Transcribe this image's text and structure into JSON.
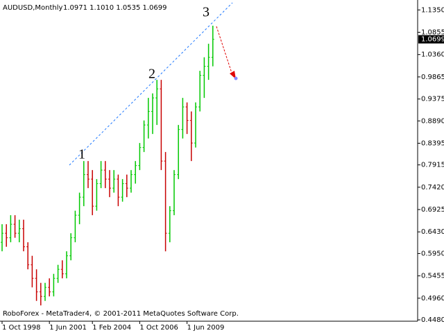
{
  "chart_data": {
    "type": "ohlc",
    "title": "AUDUSD,Monthly",
    "subtitle": "1.0971 1.1010 1.0535 1.0699",
    "footer": "RoboForex - MetaTrader4, © 2001-2011 MetaQuotes Software Corp.",
    "annotations": [
      "1",
      "2",
      "3"
    ],
    "last_price": 1.0699,
    "up_color": "#00c800",
    "down_color": "#c80000",
    "categories": [
      "1 Oct 1998",
      null,
      null,
      null,
      null,
      null,
      null,
      null,
      null,
      null,
      null,
      "1 Jun 2001",
      null,
      null,
      null,
      null,
      null,
      null,
      null,
      null,
      null,
      "1 Feb 2004",
      null,
      null,
      null,
      null,
      null,
      null,
      null,
      null,
      null,
      null,
      "1 Oct 2006",
      null,
      null,
      null,
      null,
      null,
      null,
      null,
      null,
      null,
      null,
      "1 Jun 2009",
      null,
      null,
      null,
      null,
      null,
      null
    ],
    "open": [
      0.62,
      0.64,
      0.63,
      0.66,
      0.64,
      0.65,
      0.61,
      0.57,
      0.54,
      0.51,
      0.5,
      0.52,
      0.51,
      0.54,
      0.56,
      0.55,
      0.59,
      0.63,
      0.68,
      0.72,
      0.77,
      0.76,
      0.7,
      0.75,
      0.78,
      0.76,
      0.74,
      0.76,
      0.72,
      0.75,
      0.74,
      0.77,
      0.79,
      0.83,
      0.88,
      0.91,
      0.94,
      0.96,
      0.8,
      0.64,
      0.69,
      0.77,
      0.87,
      0.92,
      0.89,
      0.84,
      0.92,
      0.99,
      1.01,
      1.03
    ],
    "high": [
      0.66,
      0.66,
      0.68,
      0.68,
      0.67,
      0.67,
      0.62,
      0.59,
      0.56,
      0.53,
      0.53,
      0.54,
      0.55,
      0.57,
      0.58,
      0.6,
      0.64,
      0.69,
      0.73,
      0.8,
      0.8,
      0.78,
      0.76,
      0.8,
      0.8,
      0.78,
      0.78,
      0.77,
      0.76,
      0.77,
      0.78,
      0.8,
      0.84,
      0.89,
      0.94,
      0.95,
      0.98,
      0.98,
      0.82,
      0.7,
      0.78,
      0.88,
      0.94,
      0.93,
      0.91,
      0.93,
      1.0,
      1.03,
      1.06,
      1.1
    ],
    "low": [
      0.6,
      0.61,
      0.62,
      0.63,
      0.62,
      0.6,
      0.56,
      0.52,
      0.49,
      0.48,
      0.49,
      0.5,
      0.5,
      0.53,
      0.54,
      0.54,
      0.58,
      0.62,
      0.66,
      0.7,
      0.74,
      0.68,
      0.69,
      0.74,
      0.74,
      0.72,
      0.73,
      0.7,
      0.71,
      0.72,
      0.73,
      0.75,
      0.78,
      0.82,
      0.85,
      0.86,
      0.88,
      0.78,
      0.6,
      0.62,
      0.68,
      0.76,
      0.85,
      0.86,
      0.8,
      0.83,
      0.91,
      0.94,
      0.98,
      1.01
    ],
    "close": [
      0.64,
      0.63,
      0.66,
      0.64,
      0.65,
      0.61,
      0.57,
      0.54,
      0.51,
      0.5,
      0.52,
      0.51,
      0.54,
      0.56,
      0.55,
      0.59,
      0.63,
      0.68,
      0.72,
      0.77,
      0.76,
      0.7,
      0.75,
      0.78,
      0.76,
      0.74,
      0.76,
      0.72,
      0.75,
      0.74,
      0.77,
      0.79,
      0.83,
      0.88,
      0.91,
      0.94,
      0.96,
      0.8,
      0.64,
      0.69,
      0.77,
      0.87,
      0.92,
      0.89,
      0.84,
      0.92,
      0.99,
      1.01,
      1.03,
      1.0699
    ],
    "ylim": [
      0.445,
      1.157
    ],
    "yticks": [
      {
        "value": 1.135,
        "label": "1.1350"
      },
      1.0855,
      {
        "value": 1.036,
        "label": "1.0360"
      },
      0.9865,
      0.9375,
      {
        "value": 0.889,
        "label": "0.8890"
      },
      0.8395,
      0.7915,
      {
        "value": 0.742,
        "label": "0.7420"
      },
      0.6925,
      {
        "value": 0.643,
        "label": "0.6430"
      },
      {
        "value": 0.595,
        "label": "0.5950"
      },
      0.5455,
      {
        "value": 0.496,
        "label": "0.4960"
      },
      {
        "value": 0.448,
        "label": "0.4480"
      }
    ]
  }
}
